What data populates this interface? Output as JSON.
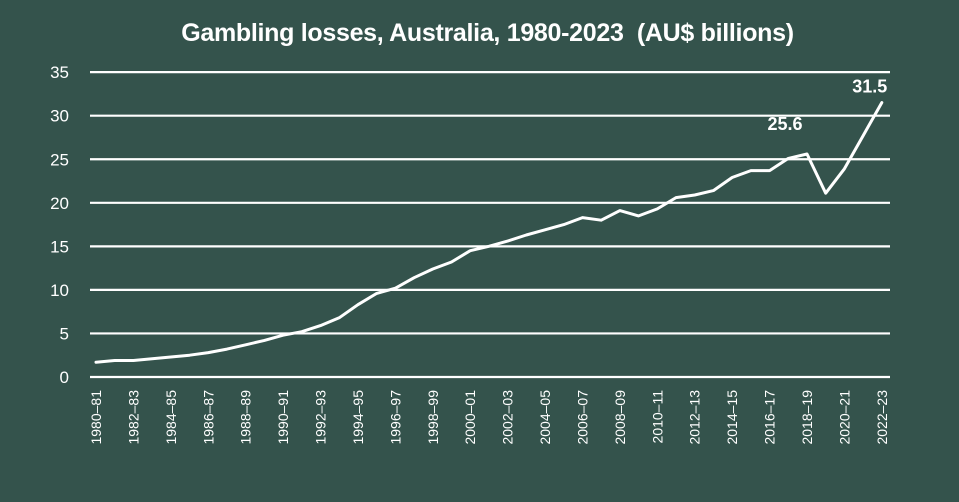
{
  "chart_data": {
    "type": "line",
    "title": "Gambling losses, Australia, 1980-2023  (AU$ billions)",
    "xlabel": "",
    "ylabel": "",
    "ylim": [
      0,
      35
    ],
    "yticks": [
      0,
      5,
      10,
      15,
      20,
      25,
      30,
      35
    ],
    "grid": true,
    "legend": null,
    "x_tick_labels": [
      "1980–81",
      "1982–83",
      "1984–85",
      "1986–87",
      "1988–89",
      "1990–91",
      "1992–93",
      "1994–95",
      "1996–97",
      "1998–99",
      "2000–01",
      "2002–03",
      "2004–05",
      "2006–07",
      "2008–09",
      "2010–11",
      "2012–13",
      "2014–15",
      "2016–17",
      "2018–19",
      "2020–21",
      "2022–23"
    ],
    "x": [
      "1980–81",
      "1981–82",
      "1982–83",
      "1983–84",
      "1984–85",
      "1985–86",
      "1986–87",
      "1987–88",
      "1988–89",
      "1989–90",
      "1990–91",
      "1991–92",
      "1992–93",
      "1993–94",
      "1994–95",
      "1995–96",
      "1996–97",
      "1997–98",
      "1998–99",
      "1999–00",
      "2000–01",
      "2001–02",
      "2002–03",
      "2003–04",
      "2004–05",
      "2005–06",
      "2006–07",
      "2007–08",
      "2008–09",
      "2009–10",
      "2010–11",
      "2011–12",
      "2012–13",
      "2013–14",
      "2014–15",
      "2015–16",
      "2016–17",
      "2017–18",
      "2018–19",
      "2019–20",
      "2020–21",
      "2021–22",
      "2022–23"
    ],
    "series": [
      {
        "name": "Gambling losses (AU$ billions)",
        "color": "#ffffff",
        "values": [
          1.7,
          1.9,
          1.9,
          2.1,
          2.3,
          2.5,
          2.8,
          3.2,
          3.7,
          4.2,
          4.8,
          5.2,
          5.9,
          6.8,
          8.3,
          9.6,
          10.2,
          11.4,
          12.4,
          13.2,
          14.5,
          15.0,
          15.6,
          16.3,
          16.9,
          17.5,
          18.3,
          18.0,
          19.1,
          18.5,
          19.3,
          20.6,
          20.9,
          21.4,
          22.9,
          23.7,
          23.7,
          25.1,
          25.6,
          21.1,
          23.9,
          27.7,
          31.5
        ]
      }
    ],
    "annotations": [
      {
        "label": "25.6",
        "x": "2018–19",
        "y": 25.6
      },
      {
        "label": "31.5",
        "x": "2022–23",
        "y": 31.5
      }
    ]
  },
  "colors": {
    "background": "#34534c",
    "line": "#ffffff",
    "grid": "#ffffff",
    "text": "#ffffff"
  }
}
